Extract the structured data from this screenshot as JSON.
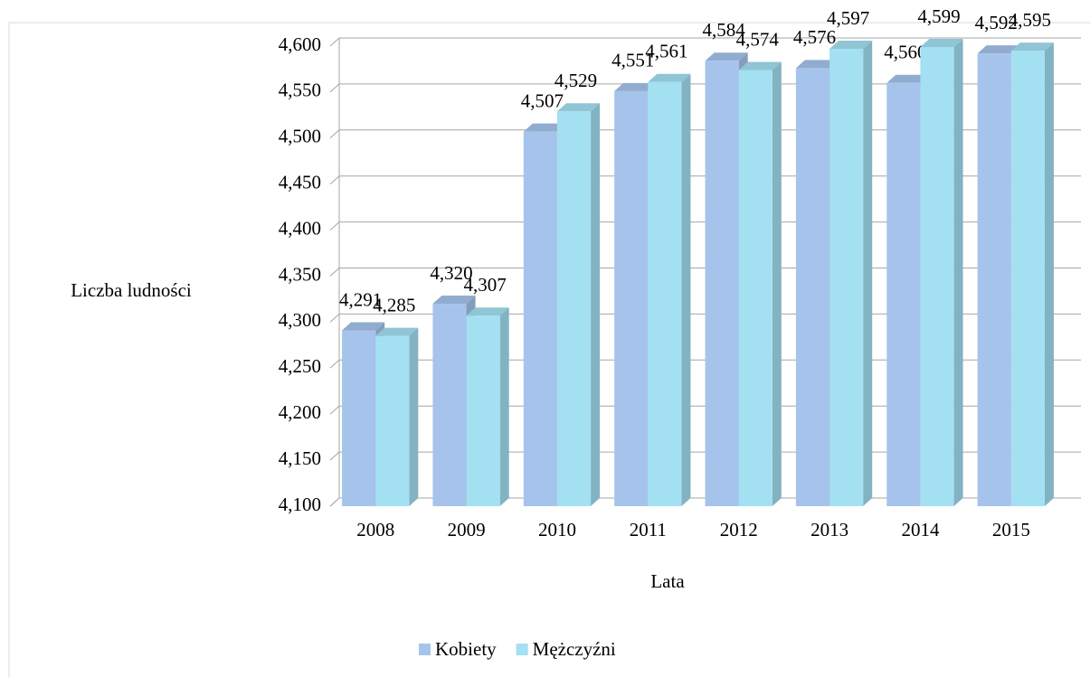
{
  "chart_data": {
    "type": "bar3d",
    "x_label": "Lata",
    "y_label": "Liczba ludności",
    "categories": [
      "2008",
      "2009",
      "2010",
      "2011",
      "2012",
      "2013",
      "2014",
      "2015"
    ],
    "series": [
      {
        "name": "Kobiety",
        "color": "#a6c3ec",
        "values": [
          4291,
          4320,
          4507,
          4551,
          4584,
          4576,
          4560,
          4592
        ],
        "value_labels": [
          "4,291",
          "4,320",
          "4,507",
          "4,551",
          "4,584",
          "4,576",
          "4,560",
          "4,592"
        ]
      },
      {
        "name": "Mężczyźni",
        "color": "#a3e0f2",
        "values": [
          4285,
          4307,
          4529,
          4561,
          4574,
          4597,
          4599,
          4595
        ],
        "value_labels": [
          "4,285",
          "4,307",
          "4,529",
          "4,561",
          "4,574",
          "4,597",
          "4,599",
          "4,595"
        ]
      }
    ],
    "ylim": [
      4100,
      4600
    ],
    "yticks": [
      {
        "value": 4100,
        "label": "4,100"
      },
      {
        "value": 4150,
        "label": "4,150"
      },
      {
        "value": 4200,
        "label": "4,200"
      },
      {
        "value": 4250,
        "label": "4,250"
      },
      {
        "value": 4300,
        "label": "4,300"
      },
      {
        "value": 4350,
        "label": "4,350"
      },
      {
        "value": 4400,
        "label": "4,400"
      },
      {
        "value": 4450,
        "label": "4,450"
      },
      {
        "value": 4500,
        "label": "4,500"
      },
      {
        "value": 4550,
        "label": "4,550"
      },
      {
        "value": 4600,
        "label": "4,600"
      }
    ],
    "grid": true,
    "legend": "bottom"
  }
}
